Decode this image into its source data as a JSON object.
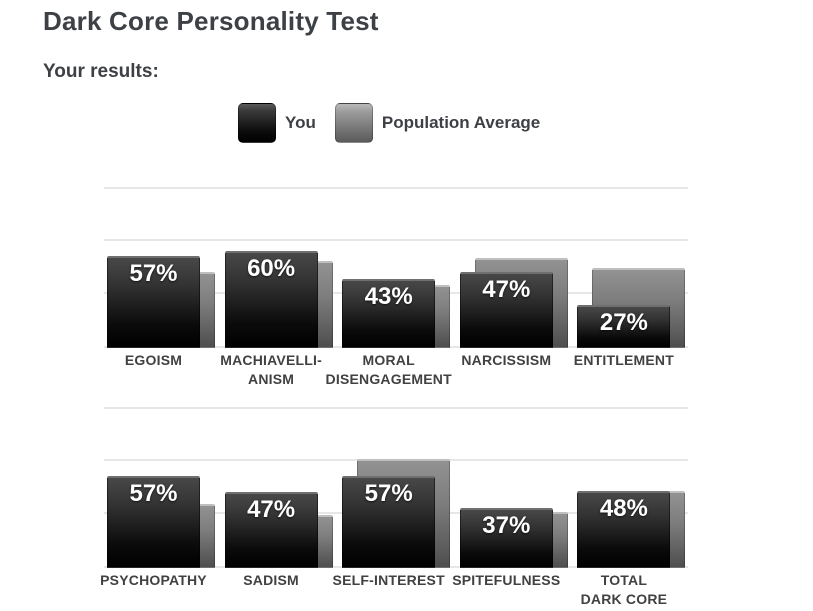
{
  "header": {
    "title": "Dark Core Personality Test",
    "subtitle": "Your results:"
  },
  "legend": {
    "you": "You",
    "average": "Population Average"
  },
  "colors": {
    "heading_text": "#3d4045",
    "category_text": "#414141",
    "value_text": "#ffffff",
    "gridline": "#e7e7e7",
    "you_bar_top": "#484848",
    "you_bar_bottom": "#000000",
    "avg_bar_top": "#929292",
    "avg_bar_bottom": "#4e4e4e"
  },
  "chart_data": [
    {
      "type": "bar",
      "title": "",
      "categories": [
        "EGOISM",
        "MACHIAVELLI-\nANISM",
        "MORAL\nDISENGAGEMENT",
        "NARCISSISM",
        "ENTITLEMENT"
      ],
      "series": [
        {
          "name": "You",
          "values": [
            57,
            60,
            43,
            47,
            27
          ],
          "labels": [
            "57%",
            "60%",
            "43%",
            "47%",
            "27%"
          ]
        },
        {
          "name": "Population Average",
          "values": [
            47,
            54,
            39,
            56,
            50
          ],
          "labels": []
        }
      ],
      "ylabel": "",
      "xlabel": "",
      "ylim": [
        0,
        100
      ],
      "grid": true,
      "gridlines_pct": [
        0,
        33.3,
        66.7,
        100
      ],
      "legend_position": "top"
    },
    {
      "type": "bar",
      "title": "",
      "categories": [
        "PSYCHOPATHY",
        "SADISM",
        "SELF-INTEREST",
        "SPITEFULNESS",
        "TOTAL\nDARK CORE"
      ],
      "series": [
        {
          "name": "You",
          "values": [
            57,
            47,
            57,
            37,
            48
          ],
          "labels": [
            "57%",
            "47%",
            "57%",
            "37%",
            "48%"
          ]
        },
        {
          "name": "Population Average",
          "values": [
            40,
            33,
            68,
            35,
            48
          ],
          "labels": []
        }
      ],
      "ylabel": "",
      "xlabel": "",
      "ylim": [
        0,
        100
      ],
      "grid": true,
      "gridlines_pct": [
        0,
        33.3,
        66.7,
        100
      ],
      "legend_position": "top"
    }
  ]
}
